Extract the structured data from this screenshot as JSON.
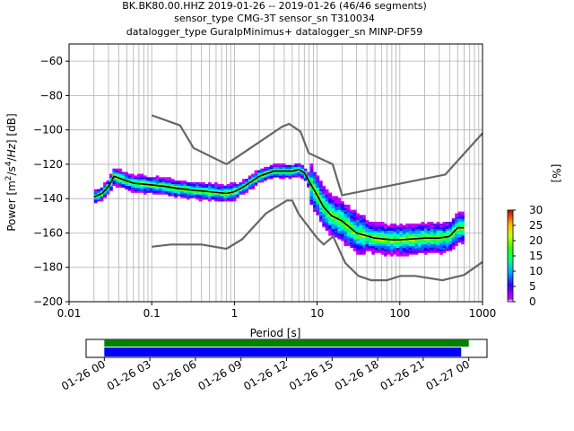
{
  "title_lines": [
    "BK.BK80.00.HHZ   2019-01-26 -- 2019-01-26  (46/46 segments)",
    "sensor_type CMG-3T sensor_sn T310034",
    "datalogger_type GuralpMinimus+ datalogger_sn MINP-DF59"
  ],
  "chart_data": [
    {
      "type": "heatmap",
      "title": "BK.BK80.00.HHZ   2019-01-26 -- 2019-01-26  (46/46 segments)",
      "xlabel": "Period [s]",
      "ylabel": "Power [m²/s⁴/Hz] [dB]",
      "xscale": "log",
      "xlim": [
        0.01,
        1000
      ],
      "ylim": [
        -200,
        -50
      ],
      "grid": true,
      "x_tick_labels": [
        "0.01",
        "0.1",
        "1",
        "10",
        "100",
        "1000"
      ],
      "x_tick_values": [
        0.01,
        0.1,
        1,
        10,
        100,
        1000
      ],
      "y_tick_values": [
        -60,
        -80,
        -100,
        -120,
        -140,
        -160,
        -180,
        -200
      ],
      "y_tick_labels": [
        "−60",
        "−80",
        "−100",
        "−120",
        "−140",
        "−160",
        "−180",
        "−200"
      ],
      "colorbar": {
        "label": "[%]",
        "ticks": [
          "0",
          "5",
          "10",
          "15",
          "20",
          "25",
          "30"
        ],
        "range": [
          0,
          30
        ]
      },
      "mean_curve": {
        "x": [
          0.02,
          0.025,
          0.03,
          0.035,
          0.04,
          0.06,
          0.1,
          0.15,
          0.2,
          0.3,
          0.5,
          0.8,
          1.0,
          1.3,
          2.0,
          3.0,
          4.0,
          5.0,
          6.0,
          7.0,
          8.0,
          10,
          12,
          15,
          20,
          30,
          50,
          80,
          100,
          200,
          300,
          400,
          500,
          600
        ],
        "y": [
          -139,
          -137,
          -133,
          -127,
          -128,
          -131,
          -132,
          -133,
          -134,
          -135,
          -136,
          -137,
          -136,
          -133,
          -127,
          -124,
          -124,
          -124,
          -123,
          -125,
          -130,
          -138,
          -145,
          -150,
          -153,
          -160,
          -163,
          -164,
          -164,
          -163,
          -163,
          -162,
          -157,
          -157
        ]
      },
      "nhnm": {
        "x": [
          0.1,
          0.22,
          0.32,
          0.8,
          3.8,
          4.6,
          6.3,
          7.9,
          15.4,
          20,
          354.8,
          10000
        ],
        "y": [
          -91.5,
          -97.4,
          -110.5,
          -120,
          -98,
          -96.5,
          -101,
          -113.5,
          -120,
          -138,
          -126,
          -48.5
        ]
      },
      "nlnm": {
        "x": [
          0.1,
          0.17,
          0.4,
          0.8,
          1.24,
          2.4,
          4.3,
          5.0,
          6.0,
          10,
          12,
          15.6,
          21.9,
          31.6,
          45,
          70,
          101,
          154,
          328,
          600,
          10000
        ],
        "y": [
          -168,
          -166.7,
          -166.7,
          -169.2,
          -163.7,
          -148.6,
          -141.1,
          -141.1,
          -149,
          -163,
          -166.7,
          -162,
          -177.5,
          -185,
          -187.5,
          -187.5,
          -185,
          -185,
          -187.5,
          -184.4,
          -143
        ]
      }
    },
    {
      "type": "bar",
      "orientation": "timeline",
      "x_tick_labels": [
        "01-26 00",
        "01-26 03",
        "01-26 06",
        "01-26 09",
        "01-26 12",
        "01-26 15",
        "01-26 18",
        "01-26 21",
        "01-27 00"
      ],
      "xlim_hours": [
        -1.2,
        25.2
      ],
      "series": [
        {
          "color": "#008000",
          "start_hour": 0.0,
          "end_hour": 24.0
        },
        {
          "color": "#0000ff",
          "start_hour": 0.0,
          "end_hour": 23.5
        }
      ]
    }
  ]
}
